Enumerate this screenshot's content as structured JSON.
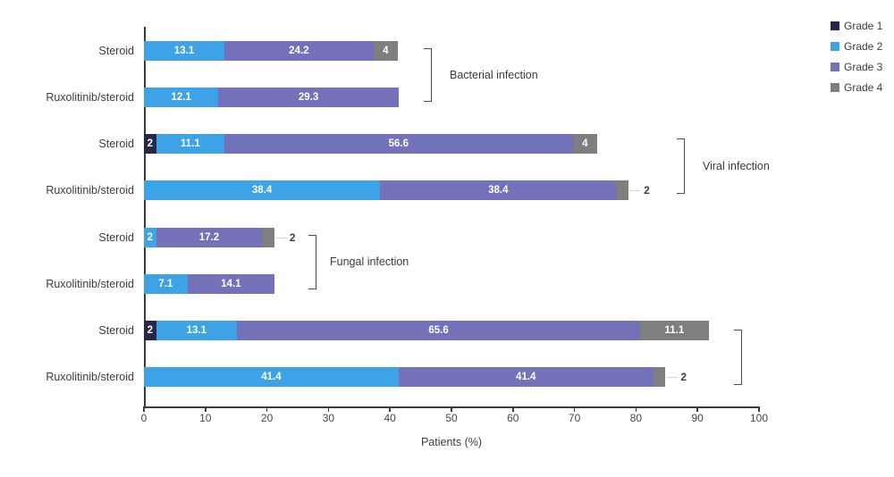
{
  "chart_data": {
    "type": "bar",
    "orientation": "horizontal",
    "stacked": true,
    "title": "",
    "xlabel": "Patients (%)",
    "ylabel": "",
    "xlim": [
      0,
      100
    ],
    "xticks": [
      0,
      10,
      20,
      30,
      40,
      50,
      60,
      70,
      80,
      90,
      100
    ],
    "grid": false,
    "legend_position": "top-right",
    "legend": [
      {
        "label": "Grade 1",
        "color": "#282749"
      },
      {
        "label": "Grade 2",
        "color": "#3da2e6"
      },
      {
        "label": "Grade 3",
        "color": "#7371ba"
      },
      {
        "label": "Grade 4",
        "color": "#7f7f7f"
      }
    ],
    "groups": [
      {
        "label": "Bacterial infection",
        "rows": [
          {
            "category": "Steroid",
            "segments": [
              {
                "grade": "Grade 2",
                "value": 13.1
              },
              {
                "grade": "Grade 3",
                "value": 24.2
              },
              {
                "grade": "Grade 4",
                "value": 4
              }
            ]
          },
          {
            "category": "Ruxolitinib/steroid",
            "segments": [
              {
                "grade": "Grade 2",
                "value": 12.1
              },
              {
                "grade": "Grade 3",
                "value": 29.3
              }
            ]
          }
        ]
      },
      {
        "label": "Viral infection",
        "rows": [
          {
            "category": "Steroid",
            "segments": [
              {
                "grade": "Grade 1",
                "value": 2
              },
              {
                "grade": "Grade 2",
                "value": 11.1
              },
              {
                "grade": "Grade 3",
                "value": 56.6
              },
              {
                "grade": "Grade 4",
                "value": 4
              }
            ]
          },
          {
            "category": "Ruxolitinib/steroid",
            "segments": [
              {
                "grade": "Grade 2",
                "value": 38.4
              },
              {
                "grade": "Grade 3",
                "value": 38.4
              },
              {
                "grade": "Grade 4",
                "value": 2,
                "label_outside": true
              }
            ]
          }
        ]
      },
      {
        "label": "Fungal infection",
        "rows": [
          {
            "category": "Steroid",
            "segments": [
              {
                "grade": "Grade 2",
                "value": 2
              },
              {
                "grade": "Grade 3",
                "value": 17.2
              },
              {
                "grade": "Grade 4",
                "value": 2,
                "label_outside": true
              }
            ]
          },
          {
            "category": "Ruxolitinib/steroid",
            "segments": [
              {
                "grade": "Grade 2",
                "value": 7.1
              },
              {
                "grade": "Grade 3",
                "value": 14.1
              }
            ]
          }
        ]
      },
      {
        "label": "",
        "rows": [
          {
            "category": "Steroid",
            "segments": [
              {
                "grade": "Grade 1",
                "value": 2
              },
              {
                "grade": "Grade 2",
                "value": 13.1
              },
              {
                "grade": "Grade 3",
                "value": 65.6
              },
              {
                "grade": "Grade 4",
                "value": 11.1
              }
            ]
          },
          {
            "category": "Ruxolitinib/steroid",
            "segments": [
              {
                "grade": "Grade 2",
                "value": 41.4
              },
              {
                "grade": "Grade 3",
                "value": 41.4
              },
              {
                "grade": "Grade 4",
                "value": 2,
                "label_outside": true
              }
            ]
          }
        ]
      }
    ]
  }
}
